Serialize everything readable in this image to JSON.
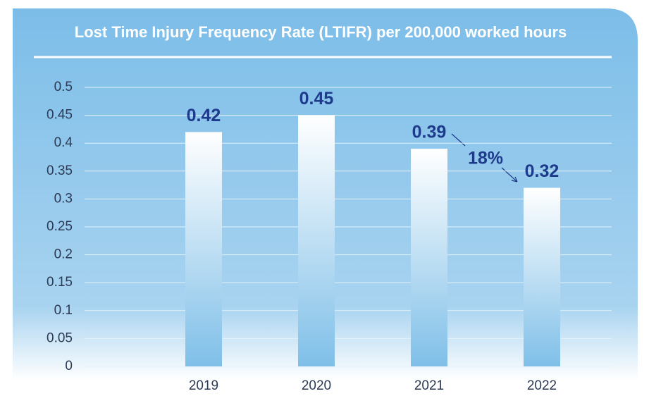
{
  "chart_data": {
    "type": "bar",
    "title": "Lost Time Injury Frequency Rate (LTIFR) per 200,000 worked hours",
    "categories": [
      "2019",
      "2020",
      "2021",
      "2022"
    ],
    "values": [
      0.42,
      0.45,
      0.39,
      0.32
    ],
    "color": "#7fbfe8",
    "ylim": [
      0,
      0.5
    ],
    "yticks": [
      0,
      0.05,
      0.1,
      0.15,
      0.2,
      0.25,
      0.3,
      0.35,
      0.4,
      0.45,
      0.5
    ],
    "grid": true,
    "annotation": "18%"
  }
}
